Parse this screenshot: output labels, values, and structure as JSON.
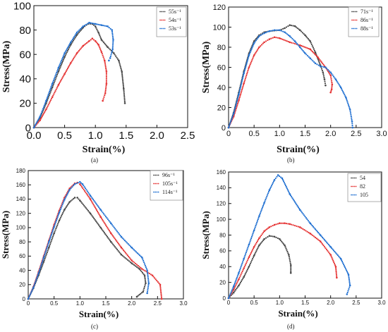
{
  "chart_data": [
    {
      "type": "scatter",
      "panel_label": "(a)",
      "xlabel": "Strain(%)",
      "ylabel": "Stress(MPa)",
      "xlim": [
        0,
        2.5
      ],
      "ylim": [
        0,
        100
      ],
      "x_ticks": [
        "0.0",
        "0.5",
        "1.0",
        "1.5",
        "2.0",
        "2.5"
      ],
      "y_ticks": [
        "0",
        "20",
        "40",
        "60",
        "80",
        "100"
      ],
      "legend_position": "top-right",
      "series": [
        {
          "name": "55s⁻¹",
          "color": "#444444",
          "points": [
            [
              0,
              0
            ],
            [
              0.1,
              8
            ],
            [
              0.2,
              20
            ],
            [
              0.3,
              33
            ],
            [
              0.4,
              46
            ],
            [
              0.5,
              58
            ],
            [
              0.6,
              68
            ],
            [
              0.7,
              76
            ],
            [
              0.8,
              82
            ],
            [
              0.88,
              85
            ],
            [
              0.95,
              85
            ],
            [
              1.0,
              83
            ],
            [
              1.05,
              78
            ],
            [
              1.1,
              72
            ],
            [
              1.2,
              66
            ],
            [
              1.3,
              61
            ],
            [
              1.38,
              55
            ],
            [
              1.43,
              46
            ],
            [
              1.46,
              32
            ],
            [
              1.48,
              20
            ]
          ]
        },
        {
          "name": "54s⁻¹",
          "color": "#e53030",
          "points": [
            [
              0,
              0
            ],
            [
              0.1,
              6
            ],
            [
              0.2,
              15
            ],
            [
              0.3,
              25
            ],
            [
              0.4,
              35
            ],
            [
              0.5,
              44
            ],
            [
              0.6,
              53
            ],
            [
              0.7,
              61
            ],
            [
              0.8,
              67
            ],
            [
              0.9,
              71
            ],
            [
              0.95,
              73
            ],
            [
              1.0,
              71
            ],
            [
              1.05,
              68
            ],
            [
              1.1,
              62
            ],
            [
              1.15,
              55
            ],
            [
              1.18,
              46
            ],
            [
              1.18,
              36
            ],
            [
              1.16,
              28
            ],
            [
              1.12,
              22
            ]
          ]
        },
        {
          "name": "53s⁻¹",
          "color": "#1f6fd1",
          "points": [
            [
              0,
              0
            ],
            [
              0.1,
              9
            ],
            [
              0.2,
              22
            ],
            [
              0.3,
              36
            ],
            [
              0.4,
              49
            ],
            [
              0.5,
              61
            ],
            [
              0.6,
              70
            ],
            [
              0.7,
              78
            ],
            [
              0.8,
              83
            ],
            [
              0.9,
              86
            ],
            [
              1.0,
              85
            ],
            [
              1.1,
              84
            ],
            [
              1.2,
              83
            ],
            [
              1.27,
              80
            ],
            [
              1.29,
              72
            ],
            [
              1.28,
              64
            ],
            [
              1.24,
              57
            ],
            [
              1.22,
              55
            ]
          ]
        }
      ]
    },
    {
      "type": "scatter",
      "panel_label": "(b)",
      "xlabel": "Strain(%)",
      "ylabel": "Stress(MPa)",
      "xlim": [
        0,
        3.0
      ],
      "ylim": [
        0,
        120
      ],
      "x_ticks": [
        "0",
        "0.5",
        "1.0",
        "1.5",
        "2.0",
        "2.5",
        "3.0"
      ],
      "y_ticks": [
        "0",
        "20",
        "40",
        "60",
        "80",
        "100",
        "120"
      ],
      "legend_position": "top-right",
      "series": [
        {
          "name": "71s⁻¹",
          "color": "#444444",
          "points": [
            [
              0,
              0
            ],
            [
              0.1,
              15
            ],
            [
              0.2,
              35
            ],
            [
              0.3,
              56
            ],
            [
              0.4,
              74
            ],
            [
              0.5,
              86
            ],
            [
              0.6,
              92
            ],
            [
              0.7,
              95
            ],
            [
              0.8,
              96
            ],
            [
              1.0,
              97
            ],
            [
              1.1,
              99
            ],
            [
              1.2,
              102
            ],
            [
              1.3,
              101
            ],
            [
              1.4,
              97
            ],
            [
              1.5,
              92
            ],
            [
              1.6,
              86
            ],
            [
              1.7,
              75
            ],
            [
              1.8,
              62
            ],
            [
              1.85,
              55
            ],
            [
              1.88,
              48
            ],
            [
              1.9,
              42
            ]
          ]
        },
        {
          "name": "86s⁻¹",
          "color": "#e53030",
          "points": [
            [
              0,
              0
            ],
            [
              0.1,
              11
            ],
            [
              0.2,
              27
            ],
            [
              0.3,
              44
            ],
            [
              0.4,
              60
            ],
            [
              0.5,
              72
            ],
            [
              0.6,
              80
            ],
            [
              0.7,
              85
            ],
            [
              0.8,
              88
            ],
            [
              0.9,
              90
            ],
            [
              1.0,
              89
            ],
            [
              1.2,
              85
            ],
            [
              1.4,
              82
            ],
            [
              1.6,
              78
            ],
            [
              1.75,
              70
            ],
            [
              1.9,
              60
            ],
            [
              2.0,
              52
            ],
            [
              2.03,
              43
            ],
            [
              2.02,
              38
            ],
            [
              2.0,
              35
            ]
          ]
        },
        {
          "name": "88s⁻¹",
          "color": "#1f6fd1",
          "points": [
            [
              0,
              0
            ],
            [
              0.1,
              14
            ],
            [
              0.2,
              33
            ],
            [
              0.3,
              54
            ],
            [
              0.4,
              72
            ],
            [
              0.5,
              84
            ],
            [
              0.6,
              91
            ],
            [
              0.7,
              94
            ],
            [
              0.8,
              96
            ],
            [
              0.9,
              97
            ],
            [
              1.0,
              97
            ],
            [
              1.1,
              95
            ],
            [
              1.2,
              91
            ],
            [
              1.3,
              86
            ],
            [
              1.4,
              80
            ],
            [
              1.5,
              74
            ],
            [
              1.6,
              69
            ],
            [
              1.7,
              64
            ],
            [
              1.8,
              61
            ],
            [
              1.9,
              60
            ],
            [
              2.0,
              55
            ],
            [
              2.1,
              48
            ],
            [
              2.2,
              40
            ],
            [
              2.3,
              30
            ],
            [
              2.38,
              18
            ],
            [
              2.42,
              6
            ],
            [
              2.43,
              0
            ]
          ]
        }
      ]
    },
    {
      "type": "scatter",
      "panel_label": "(c)",
      "xlabel": "Strain(%)",
      "ylabel": "Stress(MPa)",
      "xlim": [
        0,
        3.0
      ],
      "ylim": [
        0,
        180
      ],
      "x_ticks": [
        "0",
        "0.5",
        "1.0",
        "1.5",
        "2.0",
        "2.5",
        "3.0"
      ],
      "y_ticks": [
        "0",
        "20",
        "40",
        "60",
        "80",
        "100",
        "120",
        "140",
        "160",
        "180"
      ],
      "legend_position": "top-right",
      "series": [
        {
          "name": "96s⁻¹",
          "color": "#444444",
          "points": [
            [
              0,
              0
            ],
            [
              0.1,
              15
            ],
            [
              0.2,
              33
            ],
            [
              0.3,
              52
            ],
            [
              0.4,
              72
            ],
            [
              0.5,
              92
            ],
            [
              0.6,
              110
            ],
            [
              0.7,
              125
            ],
            [
              0.8,
              136
            ],
            [
              0.9,
              142
            ],
            [
              0.95,
              142
            ],
            [
              1.0,
              138
            ],
            [
              1.2,
              120
            ],
            [
              1.4,
              100
            ],
            [
              1.6,
              80
            ],
            [
              1.8,
              62
            ],
            [
              2.0,
              50
            ],
            [
              2.15,
              42
            ],
            [
              2.25,
              33
            ],
            [
              2.27,
              22
            ],
            [
              2.22,
              10
            ],
            [
              2.1,
              3
            ]
          ]
        },
        {
          "name": "105s⁻¹",
          "color": "#e53030",
          "points": [
            [
              0,
              0
            ],
            [
              0.1,
              17
            ],
            [
              0.2,
              38
            ],
            [
              0.3,
              60
            ],
            [
              0.4,
              82
            ],
            [
              0.5,
              104
            ],
            [
              0.6,
              124
            ],
            [
              0.7,
              142
            ],
            [
              0.8,
              155
            ],
            [
              0.9,
              162
            ],
            [
              0.95,
              163
            ],
            [
              1.0,
              161
            ],
            [
              1.2,
              140
            ],
            [
              1.4,
              115
            ],
            [
              1.6,
              92
            ],
            [
              1.8,
              72
            ],
            [
              2.0,
              54
            ],
            [
              2.2,
              42
            ],
            [
              2.4,
              33
            ],
            [
              2.55,
              20
            ],
            [
              2.58,
              0
            ]
          ]
        },
        {
          "name": "114s⁻¹",
          "color": "#1f6fd1",
          "points": [
            [
              0,
              0
            ],
            [
              0.1,
              16
            ],
            [
              0.2,
              36
            ],
            [
              0.3,
              58
            ],
            [
              0.4,
              80
            ],
            [
              0.5,
              101
            ],
            [
              0.6,
              121
            ],
            [
              0.7,
              139
            ],
            [
              0.8,
              153
            ],
            [
              0.9,
              161
            ],
            [
              1.0,
              164
            ],
            [
              1.05,
              161
            ],
            [
              1.2,
              145
            ],
            [
              1.4,
              125
            ],
            [
              1.6,
              106
            ],
            [
              1.8,
              87
            ],
            [
              2.0,
              72
            ],
            [
              2.2,
              58
            ],
            [
              2.3,
              40
            ],
            [
              2.33,
              22
            ],
            [
              2.3,
              8
            ]
          ]
        }
      ]
    },
    {
      "type": "scatter",
      "panel_label": "(d)",
      "xlabel": "Strain(%)",
      "ylabel": "Stress(MPa)",
      "xlim": [
        0,
        3.0
      ],
      "ylim": [
        0,
        160
      ],
      "x_ticks": [
        "0",
        "0.5",
        "1.0",
        "1.5",
        "2.0",
        "2.5",
        "3.0"
      ],
      "y_ticks": [
        "0",
        "20",
        "40",
        "60",
        "80",
        "100",
        "120",
        "140",
        "160"
      ],
      "legend_position": "top-right",
      "series": [
        {
          "name": "54",
          "color": "#444444",
          "points": [
            [
              0,
              0
            ],
            [
              0.1,
              7
            ],
            [
              0.2,
              16
            ],
            [
              0.3,
              27
            ],
            [
              0.4,
              40
            ],
            [
              0.5,
              54
            ],
            [
              0.6,
              67
            ],
            [
              0.7,
              75
            ],
            [
              0.8,
              79
            ],
            [
              0.9,
              78
            ],
            [
              1.0,
              75
            ],
            [
              1.1,
              67
            ],
            [
              1.18,
              55
            ],
            [
              1.22,
              42
            ],
            [
              1.22,
              32
            ]
          ]
        },
        {
          "name": "82",
          "color": "#e53030",
          "points": [
            [
              0,
              0
            ],
            [
              0.1,
              11
            ],
            [
              0.2,
              24
            ],
            [
              0.3,
              38
            ],
            [
              0.4,
              52
            ],
            [
              0.5,
              65
            ],
            [
              0.6,
              76
            ],
            [
              0.7,
              85
            ],
            [
              0.8,
              90
            ],
            [
              0.9,
              93
            ],
            [
              1.0,
              95
            ],
            [
              1.1,
              95
            ],
            [
              1.2,
              94
            ],
            [
              1.4,
              90
            ],
            [
              1.6,
              82
            ],
            [
              1.8,
              72
            ],
            [
              2.0,
              55
            ],
            [
              2.1,
              40
            ],
            [
              2.12,
              26
            ]
          ]
        },
        {
          "name": "105",
          "color": "#1f6fd1",
          "points": [
            [
              0,
              0
            ],
            [
              0.1,
              15
            ],
            [
              0.2,
              32
            ],
            [
              0.3,
              50
            ],
            [
              0.4,
              68
            ],
            [
              0.5,
              86
            ],
            [
              0.6,
              104
            ],
            [
              0.7,
              121
            ],
            [
              0.8,
              137
            ],
            [
              0.9,
              150
            ],
            [
              0.97,
              156
            ],
            [
              1.05,
              152
            ],
            [
              1.2,
              132
            ],
            [
              1.4,
              112
            ],
            [
              1.6,
              95
            ],
            [
              1.8,
              80
            ],
            [
              2.0,
              65
            ],
            [
              2.2,
              50
            ],
            [
              2.35,
              30
            ],
            [
              2.38,
              16
            ],
            [
              2.32,
              5
            ]
          ]
        }
      ]
    }
  ]
}
